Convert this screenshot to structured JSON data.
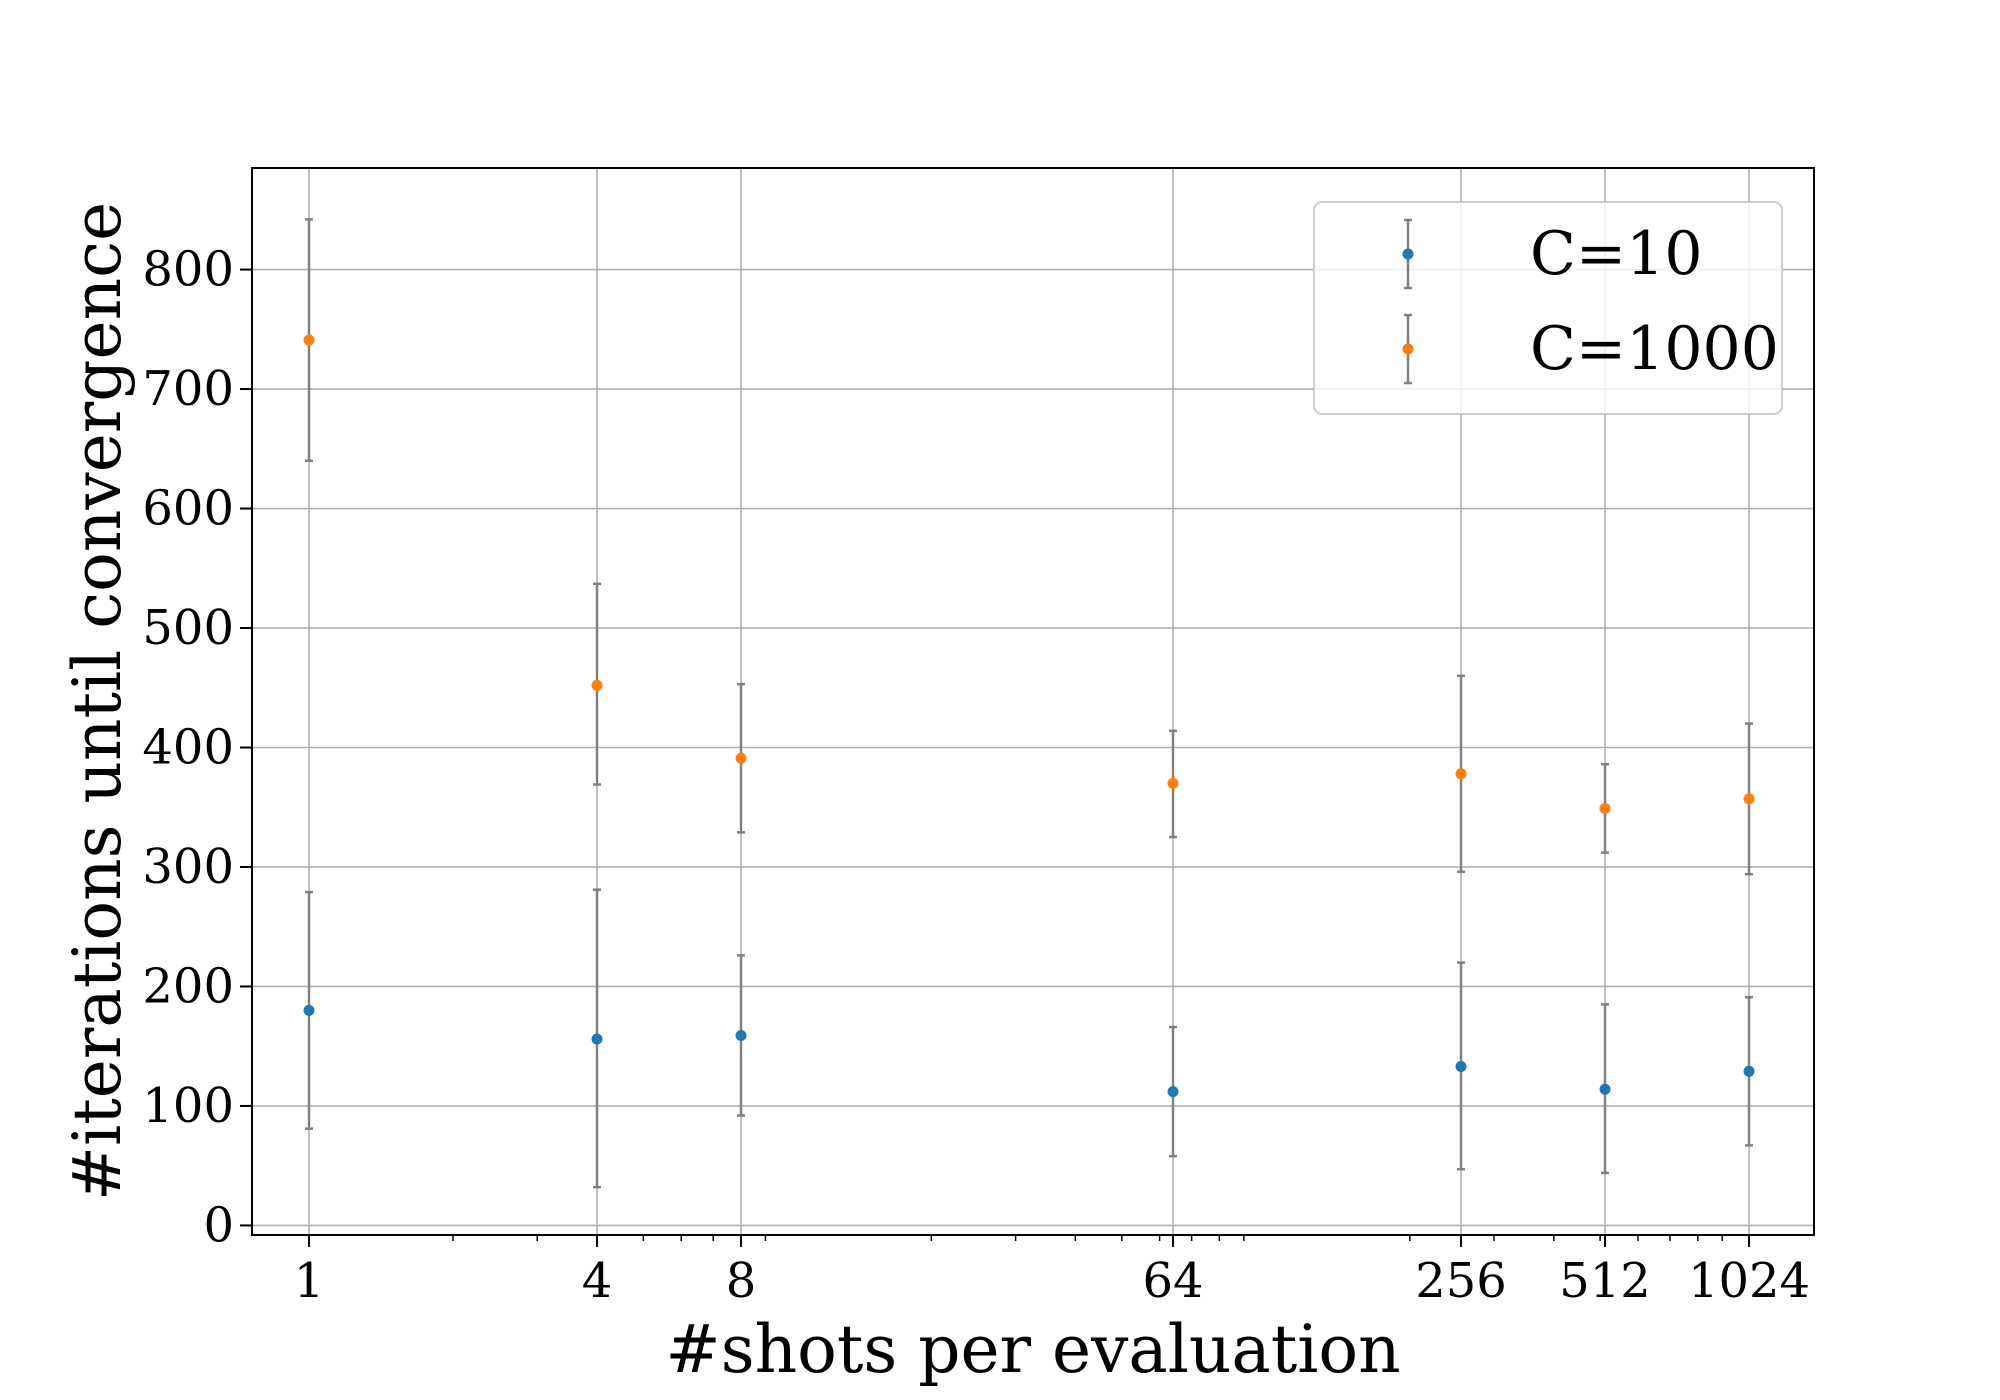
{
  "chart_data": {
    "type": "scatter",
    "title": "",
    "xlabel": "#shots per evaluation",
    "ylabel": "#iterations until convergence",
    "x_scale": "log2",
    "xlim": [
      0.76,
      1400
    ],
    "ylim": [
      -8,
      885
    ],
    "x_ticks": [
      1,
      4,
      8,
      64,
      256,
      512,
      1024
    ],
    "x_tick_labels": [
      "1",
      "4",
      "8",
      "64",
      "256",
      "512",
      "1024"
    ],
    "y_ticks": [
      0,
      100,
      200,
      300,
      400,
      500,
      600,
      700,
      800
    ],
    "y_tick_labels": [
      "0",
      "100",
      "200",
      "300",
      "400",
      "500",
      "600",
      "700",
      "800"
    ],
    "grid": true,
    "legend_position": "top-right",
    "errorbar_color": "#808080",
    "series": [
      {
        "name": "C=10",
        "color": "#1f77b4",
        "x": [
          1,
          4,
          8,
          64,
          256,
          512,
          1024
        ],
        "y": [
          180,
          156,
          159,
          112,
          133,
          114,
          129
        ],
        "yerr_low": [
          81,
          32,
          92,
          58,
          47,
          44,
          67
        ],
        "yerr_high": [
          279,
          281,
          226,
          166,
          220,
          185,
          191
        ]
      },
      {
        "name": "C=1000",
        "color": "#ff7f0e",
        "x": [
          1,
          4,
          8,
          64,
          256,
          512,
          1024
        ],
        "y": [
          741,
          452,
          391,
          370,
          378,
          349,
          357
        ],
        "yerr_low": [
          640,
          369,
          329,
          325,
          296,
          312,
          294
        ],
        "yerr_high": [
          842,
          537,
          453,
          414,
          460,
          386,
          420
        ]
      }
    ]
  }
}
